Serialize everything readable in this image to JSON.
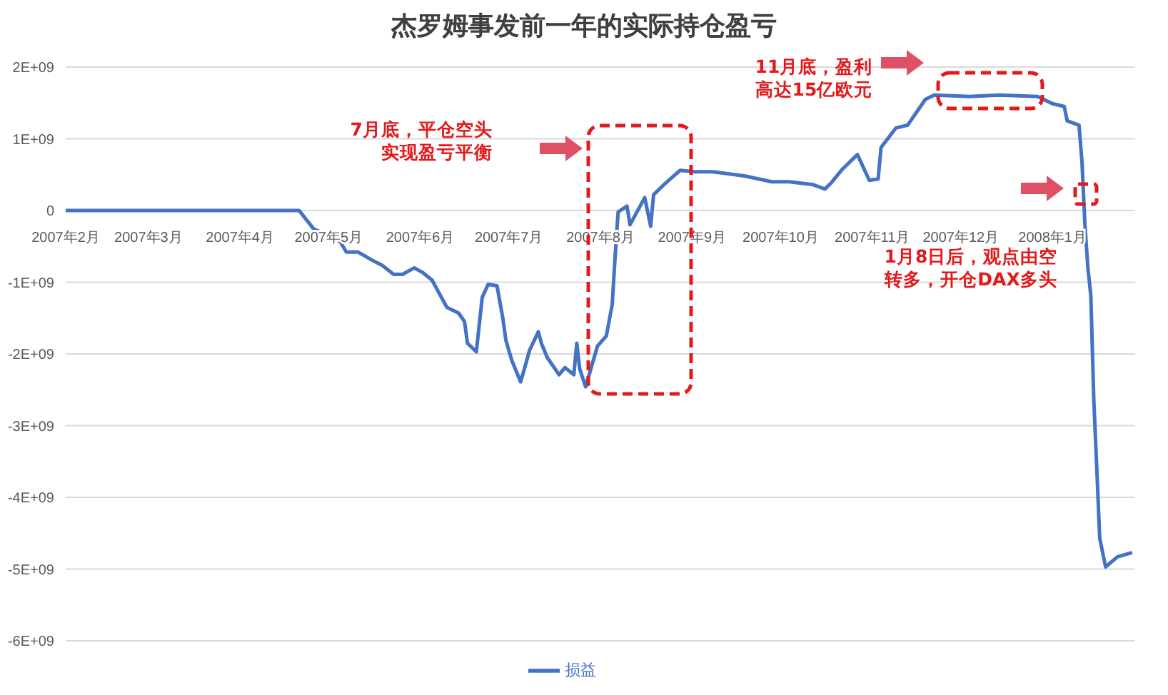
{
  "chart_data": {
    "type": "line",
    "title": "杰罗姆事发前一年的实际持仓盈亏",
    "x": [
      "2007-02-01",
      "2007-04-21",
      "2007-04-26",
      "2007-05-02",
      "2007-05-05",
      "2007-05-07",
      "2007-05-11",
      "2007-05-16",
      "2007-05-19",
      "2007-05-23",
      "2007-05-26",
      "2007-05-30",
      "2007-06-02",
      "2007-06-05",
      "2007-06-10",
      "2007-06-14",
      "2007-06-16",
      "2007-06-17",
      "2007-06-20",
      "2007-06-22",
      "2007-06-24",
      "2007-06-27",
      "2007-06-29",
      "2007-06-30",
      "2007-07-02",
      "2007-07-05",
      "2007-07-07",
      "2007-07-08",
      "2007-07-11",
      "2007-07-12",
      "2007-07-14",
      "2007-07-18",
      "2007-07-20",
      "2007-07-23",
      "2007-07-24",
      "2007-07-25",
      "2007-07-27",
      "2007-07-31",
      "2007-08-03",
      "2007-08-05",
      "2007-08-06",
      "2007-08-07",
      "2007-08-10",
      "2007-08-11",
      "2007-08-16",
      "2007-08-18",
      "2007-08-19",
      "2007-08-23",
      "2007-08-28",
      "2007-09-02",
      "2007-09-08",
      "2007-09-19",
      "2007-09-28",
      "2007-10-04",
      "2007-10-12",
      "2007-10-16",
      "2007-10-18",
      "2007-10-22",
      "2007-10-27",
      "2007-10-31",
      "2007-11-03",
      "2007-11-04",
      "2007-11-09",
      "2007-11-13",
      "2007-11-19",
      "2007-11-22",
      "2007-12-04",
      "2007-12-14",
      "2007-12-27",
      "2008-01-01",
      "2008-01-05",
      "2008-01-06",
      "2008-01-10",
      "2008-01-11",
      "2008-01-12",
      "2008-01-13",
      "2008-01-14",
      "2008-01-15",
      "2008-01-16",
      "2008-01-17",
      "2008-01-19",
      "2008-01-23",
      "2008-01-28"
    ],
    "series": [
      {
        "name": "损益",
        "color": "#4472c4",
        "values": [
          0,
          0,
          -260000000.0,
          -360000000.0,
          -440000000.0,
          -580000000.0,
          -580000000.0,
          -700000000.0,
          -760000000.0,
          -890000000.0,
          -890000000.0,
          -800000000.0,
          -870000000.0,
          -970000000.0,
          -1350000000.0,
          -1430000000.0,
          -1550000000.0,
          -1850000000.0,
          -1970000000.0,
          -1210000000.0,
          -1030000000.0,
          -1050000000.0,
          -1510000000.0,
          -1810000000.0,
          -2090000000.0,
          -2390000000.0,
          -2100000000.0,
          -1950000000.0,
          -1690000000.0,
          -1850000000.0,
          -2050000000.0,
          -2290000000.0,
          -2190000000.0,
          -2290000000.0,
          -1850000000.0,
          -2210000000.0,
          -2460000000.0,
          -1890000000.0,
          -1750000000.0,
          -1310000000.0,
          -620000000.0,
          -20000000.0,
          60000000.0,
          -200000000.0,
          180000000.0,
          -220000000.0,
          220000000.0,
          380000000.0,
          560000000.0,
          540000000.0,
          540000000.0,
          480000000.0,
          400000000.0,
          400000000.0,
          360000000.0,
          300000000.0,
          380000000.0,
          580000000.0,
          780000000.0,
          420000000.0,
          440000000.0,
          880000000.0,
          1150000000.0,
          1190000000.0,
          1550000000.0,
          1610000000.0,
          1590000000.0,
          1610000000.0,
          1590000000.0,
          1490000000.0,
          1450000000.0,
          1250000000.0,
          1190000000.0,
          680000000.0,
          -200000000.0,
          -800000000.0,
          -1190000000.0,
          -2640000000.0,
          -3580000000.0,
          -4570000000.0,
          -4970000000.0,
          -4830000000.0,
          -4770000000.0
        ]
      }
    ],
    "xlim": [
      "2007-02-01",
      "2008-01-29"
    ],
    "xticks": [
      {
        "value": "2007-02-01",
        "label": "2007年2月"
      },
      {
        "value": "2007-03-01",
        "label": "2007年3月"
      },
      {
        "value": "2007-04-01",
        "label": "2007年4月"
      },
      {
        "value": "2007-05-01",
        "label": "2007年5月"
      },
      {
        "value": "2007-06-01",
        "label": "2007年6月"
      },
      {
        "value": "2007-07-01",
        "label": "2007年7月"
      },
      {
        "value": "2007-08-01",
        "label": "2007年8月"
      },
      {
        "value": "2007-09-01",
        "label": "2007年9月"
      },
      {
        "value": "2007-10-01",
        "label": "2007年10月"
      },
      {
        "value": "2007-11-01",
        "label": "2007年11月"
      },
      {
        "value": "2007-12-01",
        "label": "2007年12月"
      },
      {
        "value": "2008-01-01",
        "label": "2008年1月"
      }
    ],
    "ylim": [
      -6000000000.0,
      2000000000.0
    ],
    "yticks": [
      {
        "value": -6000000000.0,
        "label": "-6E+09"
      },
      {
        "value": -5000000000.0,
        "label": "-5E+09"
      },
      {
        "value": -4000000000.0,
        "label": "-4E+09"
      },
      {
        "value": -3000000000.0,
        "label": "-3E+09"
      },
      {
        "value": -2000000000.0,
        "label": "-2E+09"
      },
      {
        "value": -1000000000.0,
        "label": "-1E+09"
      },
      {
        "value": 0,
        "label": "0"
      },
      {
        "value": 1000000000.0,
        "label": "1E+09"
      },
      {
        "value": 2000000000.0,
        "label": "2E+09"
      }
    ],
    "grid": "y",
    "legend": "bottom",
    "marker": "none",
    "line_style": "solid",
    "annotations": [
      "7月底，平仓空头实现盈亏平衡",
      "11月底，盈利高达15亿欧元",
      "1月8日后，观点由空转多，开仓DAX多头"
    ]
  }
}
